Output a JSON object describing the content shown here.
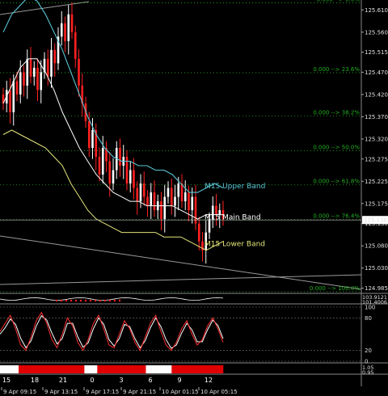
{
  "chart_data": {
    "type": "candlestick",
    "price_axis": {
      "ticks": [
        125.61,
        125.56,
        125.515,
        125.47,
        125.42,
        125.37,
        125.32,
        125.275,
        125.225,
        125.175,
        125.13,
        125.08,
        125.03,
        124.985
      ],
      "tick_labels": [
        "125.610",
        "125.560",
        "125.515",
        "125.470",
        "125.420",
        "125.370",
        "125.320",
        "125.275",
        "125.225",
        "125.175",
        "125.130",
        "125.080",
        "125.030",
        "124.985"
      ],
      "ylim": [
        124.975,
        125.625
      ],
      "current_price": 125.138,
      "current_price_label": "125.138"
    },
    "fibonacci": [
      {
        "label": "0.000 --> 0.0%",
        "price": 125.626
      },
      {
        "label": "0.000 --> 23.6%",
        "price": 125.469
      },
      {
        "label": "0.000 --> 38.2%",
        "price": 125.372
      },
      {
        "label": "0.000 --> 50.0%",
        "price": 125.294
      },
      {
        "label": "0.000 --> 61.8%",
        "price": 125.217
      },
      {
        "label": "0.000 --> 76.4%",
        "price": 125.139
      },
      {
        "label": "0.000 --> 100.0%",
        "price": 124.977
      }
    ],
    "band_labels": [
      {
        "text": "M15 Upper Band",
        "color": "#59c6d6"
      },
      {
        "text": "M15 Main Band",
        "color": "#ffffff"
      },
      {
        "text": "M15 Lower Band",
        "color": "#e5e57a"
      }
    ],
    "close_series": [
      125.4,
      125.43,
      125.38,
      125.45,
      125.42,
      125.47,
      125.44,
      125.5,
      125.46,
      125.48,
      125.43,
      125.47,
      125.5,
      125.46,
      125.52,
      125.49,
      125.55,
      125.58,
      125.54,
      125.6,
      125.56,
      125.5,
      125.44,
      125.4,
      125.36,
      125.3,
      125.34,
      125.28,
      125.24,
      125.3,
      125.27,
      125.22,
      125.25,
      125.3,
      125.26,
      125.28,
      125.22,
      125.25,
      125.21,
      125.18,
      125.22,
      125.19,
      125.17,
      125.2,
      125.16,
      125.18,
      125.14,
      125.19,
      125.21,
      125.17,
      125.19,
      125.22,
      125.18,
      125.2,
      125.16,
      125.19,
      125.13,
      125.09,
      125.07,
      125.11,
      125.14,
      125.17,
      125.15,
      125.16,
      125.14
    ],
    "upper_band": [
      125.56,
      125.6,
      125.62,
      125.64,
      125.63,
      125.6,
      125.56,
      125.52,
      125.47,
      125.42,
      125.37,
      125.33,
      125.3,
      125.28,
      125.27,
      125.27,
      125.26,
      125.26,
      125.25,
      125.25,
      125.24,
      125.22,
      125.2,
      125.2,
      125.21,
      125.22,
      125.21
    ],
    "main_band": [
      125.4,
      125.44,
      125.48,
      125.5,
      125.5,
      125.47,
      125.43,
      125.38,
      125.34,
      125.3,
      125.27,
      125.24,
      125.22,
      125.2,
      125.19,
      125.18,
      125.18,
      125.17,
      125.17,
      125.17,
      125.17,
      125.16,
      125.15,
      125.14,
      125.15,
      125.15,
      125.15
    ],
    "lower_band": [
      125.33,
      125.34,
      125.33,
      125.32,
      125.31,
      125.3,
      125.28,
      125.26,
      125.22,
      125.19,
      125.16,
      125.14,
      125.13,
      125.12,
      125.11,
      125.11,
      125.11,
      125.11,
      125.11,
      125.1,
      125.1,
      125.1,
      125.09,
      125.08,
      125.07,
      125.08,
      125.09
    ],
    "indicator_1": {
      "labels": [
        "103.9121",
        "101.4006"
      ]
    },
    "indicator_2": {
      "type": "line",
      "ylim": [
        0,
        100
      ],
      "tick_labels": [
        "100",
        "80",
        "20",
        "0"
      ],
      "ticks": [
        100,
        80,
        20,
        0
      ],
      "line_a": [
        55,
        70,
        85,
        60,
        30,
        20,
        45,
        75,
        90,
        70,
        40,
        25,
        50,
        80,
        65,
        35,
        20,
        40,
        70,
        85,
        60,
        30,
        25,
        50,
        75,
        60,
        35,
        20,
        45,
        70,
        85,
        55,
        30,
        20,
        35,
        60,
        75,
        50,
        30,
        40,
        65,
        80,
        60,
        35
      ],
      "line_b": [
        50,
        62,
        78,
        68,
        42,
        25,
        38,
        65,
        84,
        76,
        52,
        32,
        42,
        70,
        70,
        45,
        26,
        34,
        60,
        80,
        68,
        40,
        28,
        42,
        68,
        64,
        42,
        25,
        38,
        62,
        80,
        64,
        40,
        24,
        30,
        52,
        70,
        58,
        36,
        36,
        58,
        76,
        66,
        42
      ]
    },
    "indicator_3": {
      "labels": [
        "1.05",
        "0.95"
      ],
      "pattern": [
        "w",
        "w",
        "w",
        "w",
        "w",
        "w",
        "w",
        "w",
        "w",
        "w",
        "w",
        "w",
        "w",
        "r",
        "r",
        "r",
        "r",
        "r",
        "r",
        "r",
        "r",
        "r",
        "r",
        "r",
        "r",
        "r",
        "r",
        "r",
        "r",
        "r",
        "r",
        "r",
        "r",
        "r",
        "r",
        "r",
        "r",
        "r",
        "r",
        "r",
        "r",
        "r",
        "r",
        "r",
        "r",
        "r",
        "r",
        "r",
        "r",
        "r",
        "r",
        "r",
        "r",
        "r",
        "r",
        "r",
        "r",
        "r",
        "r",
        "w",
        "w",
        "w",
        "w",
        "w",
        "w",
        "w",
        "w",
        "w",
        "r",
        "r",
        "r",
        "r",
        "r",
        "r",
        "r",
        "r",
        "r",
        "r",
        "r",
        "r",
        "r",
        "r",
        "r",
        "r",
        "r",
        "r",
        "r",
        "r",
        "r",
        "r",
        "r",
        "r",
        "r",
        "r",
        "r",
        "r",
        "r",
        "r",
        "r",
        "r",
        "r",
        "r",
        "w",
        "w",
        "w",
        "w",
        "w",
        "w",
        "w",
        "w",
        "w",
        "w",
        "w",
        "w",
        "w",
        "w",
        "w",
        "w",
        "w",
        "w",
        "r",
        "r",
        "r",
        "r",
        "r",
        "r",
        "r",
        "r",
        "r",
        "r",
        "r",
        "r",
        "r",
        "r",
        "r",
        "r",
        "r",
        "r",
        "r",
        "r",
        "r",
        "r",
        "r",
        "r",
        "r",
        "r",
        "r",
        "r",
        "r",
        "r",
        "r",
        "r",
        "r",
        "r",
        "r",
        "r"
      ]
    },
    "hour_labels": [
      "15",
      "18",
      "21",
      "0",
      "3",
      "6",
      "9",
      "12"
    ],
    "date_labels": [
      "9 Apr 09:15",
      "9 Apr 13:15",
      "9 Apr 17:15",
      "9 Apr 21:15",
      "10 Apr 01:15",
      "10 Apr 05:15"
    ],
    "colors": {
      "bull": "#ffffff",
      "bear": "#ff2020",
      "upper": "#59c6d6",
      "main": "#ffffff",
      "lower": "#e5e57a",
      "fib": "#22b022",
      "osc_a": "#ff3030",
      "osc_b": "#ffffff"
    }
  }
}
